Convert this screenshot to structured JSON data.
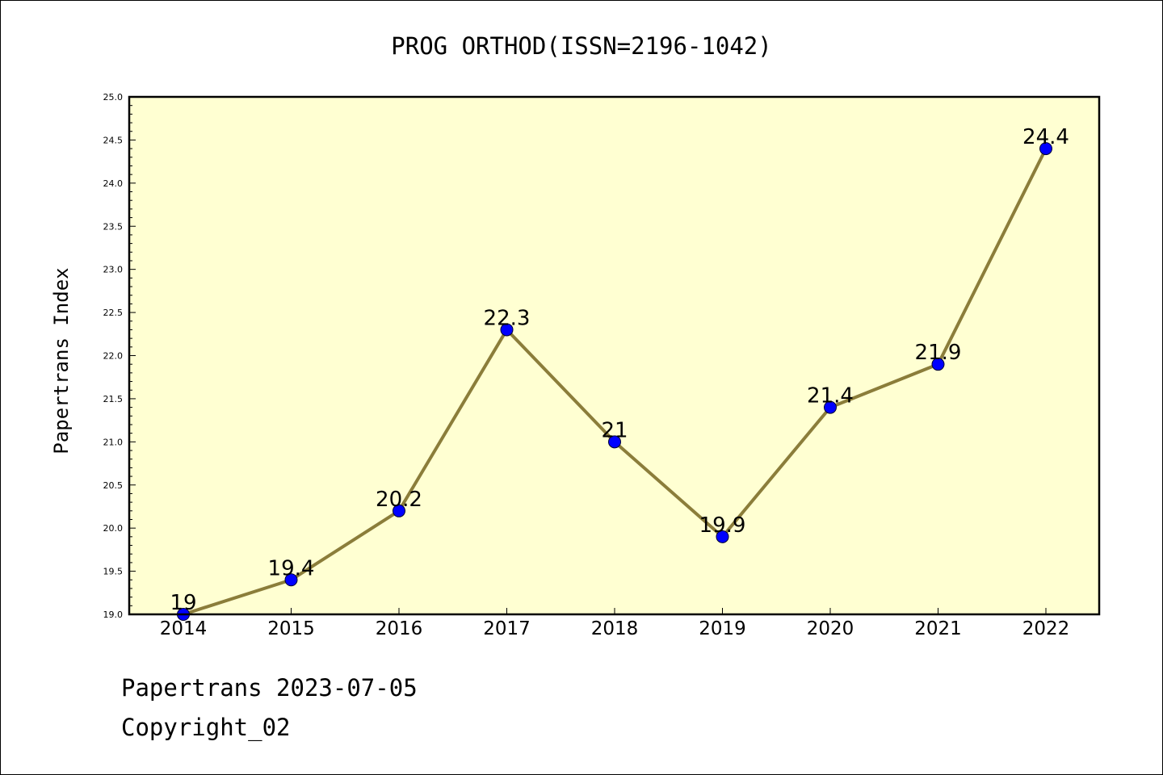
{
  "chart_data": {
    "type": "line",
    "title": "PROG ORTHOD(ISSN=2196-1042)",
    "xlabel": "",
    "ylabel": "Papertrans Index",
    "categories": [
      "2014",
      "2015",
      "2016",
      "2017",
      "2018",
      "2019",
      "2020",
      "2021",
      "2022"
    ],
    "series": [
      {
        "values": [
          19,
          19.4,
          20.2,
          22.3,
          21,
          19.9,
          21.4,
          21.9,
          24.4
        ]
      }
    ],
    "data_labels": [
      "19",
      "19.4",
      "20.2",
      "22.3",
      "21",
      "19.9",
      "21.4",
      "21.9",
      "24.4"
    ],
    "ylim": [
      19.0,
      25.0
    ],
    "yticks": [
      "19.0",
      "19.5",
      "20.0",
      "20.5",
      "21.0",
      "21.5",
      "22.0",
      "22.5",
      "23.0",
      "23.5",
      "24.0",
      "24.5",
      "25.0"
    ],
    "grid": false,
    "legend": "none",
    "colors": {
      "plot_background": "#ffffd2",
      "line": "#8b7d3a",
      "marker": "#0000ff"
    }
  },
  "footer": {
    "date_line": "Papertrans 2023-07-05",
    "copyright": "Copyright_02"
  }
}
